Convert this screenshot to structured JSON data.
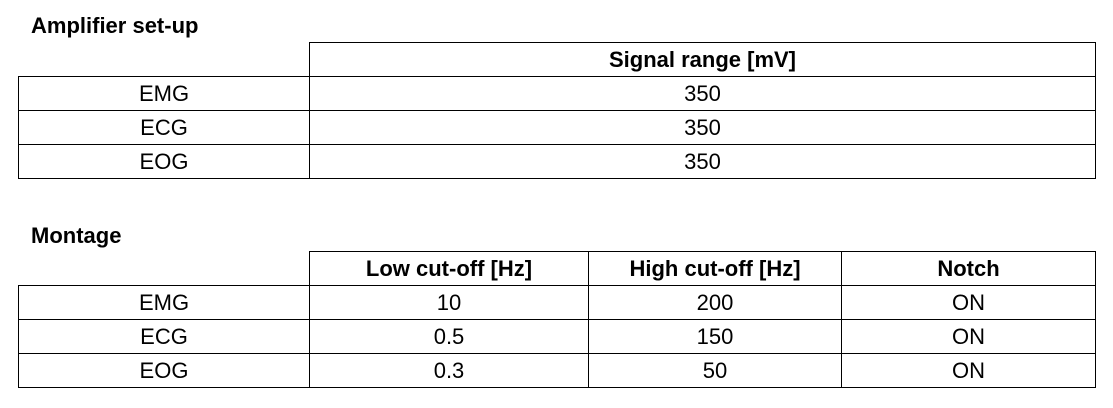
{
  "amplifier": {
    "title": "Amplifier set-up",
    "header": "Signal range [mV]",
    "rows": [
      {
        "label": "EMG",
        "value": "350"
      },
      {
        "label": "ECG",
        "value": "350"
      },
      {
        "label": "EOG",
        "value": "350"
      }
    ]
  },
  "montage": {
    "title": "Montage",
    "headers": [
      "Low cut-off [Hz]",
      "High cut-off [Hz]",
      "Notch"
    ],
    "rows": [
      {
        "label": "EMG",
        "low": "10",
        "high": "200",
        "notch": "ON"
      },
      {
        "label": "ECG",
        "low": "0.5",
        "high": "150",
        "notch": "ON"
      },
      {
        "label": "EOG",
        "low": "0.3",
        "high": "50",
        "notch": "ON"
      }
    ]
  }
}
